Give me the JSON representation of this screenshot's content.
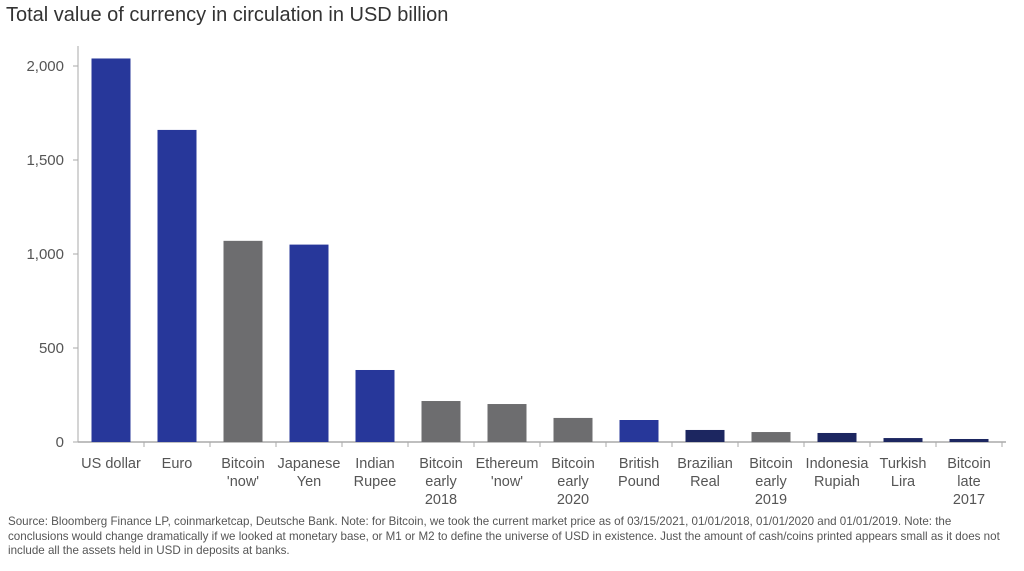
{
  "chart_data": {
    "type": "bar",
    "title": "Total value of currency in circulation in USD billion",
    "xlabel": "",
    "ylabel": "",
    "ylim": [
      0,
      2000
    ],
    "yticks": [
      0,
      500,
      1000,
      1500,
      2000
    ],
    "ytick_labels": [
      "0",
      "500",
      "1,000",
      "1,500",
      "2,000"
    ],
    "grid": false,
    "categories": [
      [
        "US dollar"
      ],
      [
        "Euro"
      ],
      [
        "Bitcoin",
        "'now'"
      ],
      [
        "Japanese",
        "Yen"
      ],
      [
        "Indian",
        "Rupee"
      ],
      [
        "Bitcoin",
        "early",
        "2018"
      ],
      [
        "Ethereum",
        "'now'"
      ],
      [
        "Bitcoin",
        "early",
        "2020"
      ],
      [
        "British",
        "Pound"
      ],
      [
        "Brazilian",
        "Real"
      ],
      [
        "Bitcoin",
        "early",
        "2019"
      ],
      [
        "Indonesia",
        "Rupiah"
      ],
      [
        "Turkish",
        "Lira"
      ],
      [
        "Bitcoin",
        "late",
        "2017"
      ]
    ],
    "values": [
      2040,
      1660,
      1070,
      1050,
      383,
      218,
      202,
      128,
      117,
      64,
      53,
      48,
      21,
      16
    ],
    "bar_colors": [
      "#27379a",
      "#27379a",
      "#6d6d6f",
      "#27379a",
      "#27379a",
      "#6d6d6f",
      "#6d6d6f",
      "#6d6d6f",
      "#27379a",
      "#1c2660",
      "#6d6d6f",
      "#1c2660",
      "#1c2660",
      "#1c2660"
    ]
  },
  "source": "Source: Bloomberg Finance LP, coinmarketcap, Deutsche Bank. Note: for Bitcoin, we took the current market price as of 03/15/2021, 01/01/2018, 01/01/2020 and 01/01/2019. Note: the conclusions would change dramatically if we looked at monetary base, or M1 or M2 to define the universe of USD in existence. Just the amount of cash/coins printed appears small as it does not include all the assets held in USD in deposits at banks."
}
